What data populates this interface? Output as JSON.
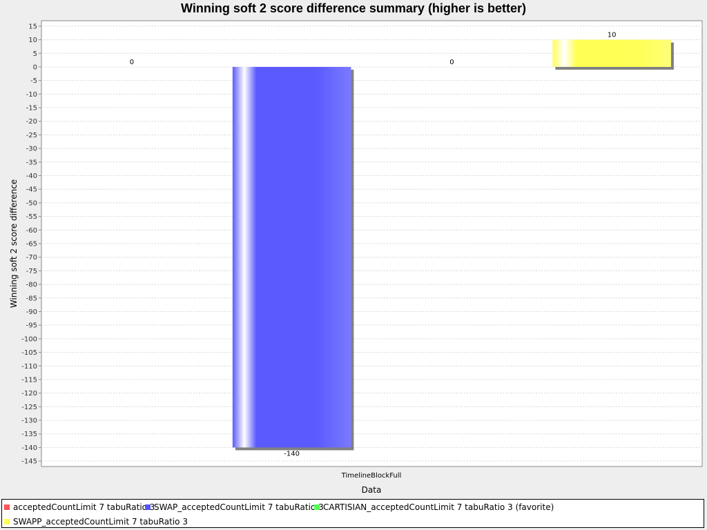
{
  "chart_data": {
    "type": "bar",
    "title": "Winning soft 2 score difference summary (higher is better)",
    "xlabel": "Data",
    "ylabel": "Winning soft 2 score difference",
    "categories": [
      "TimelineBlockFull"
    ],
    "ylim": [
      -147,
      17
    ],
    "ytick_step": 5,
    "grid": true,
    "legend_position": "bottom",
    "series": [
      {
        "name": "acceptedCountLimit 7 tabuRatio 3",
        "color": "#ff5555",
        "values": [
          0
        ]
      },
      {
        "name": "SWAP_acceptedCountLimit 7 tabuRatio 3",
        "color": "#5555ff",
        "values": [
          -140
        ]
      },
      {
        "name": "CARTISIAN_acceptedCountLimit 7 tabuRatio 3 (favorite)",
        "color": "#55ff55",
        "values": [
          0
        ]
      },
      {
        "name": "SWAPP_acceptedCountLimit 7 tabuRatio 3",
        "color": "#ffff55",
        "values": [
          10
        ]
      }
    ]
  }
}
